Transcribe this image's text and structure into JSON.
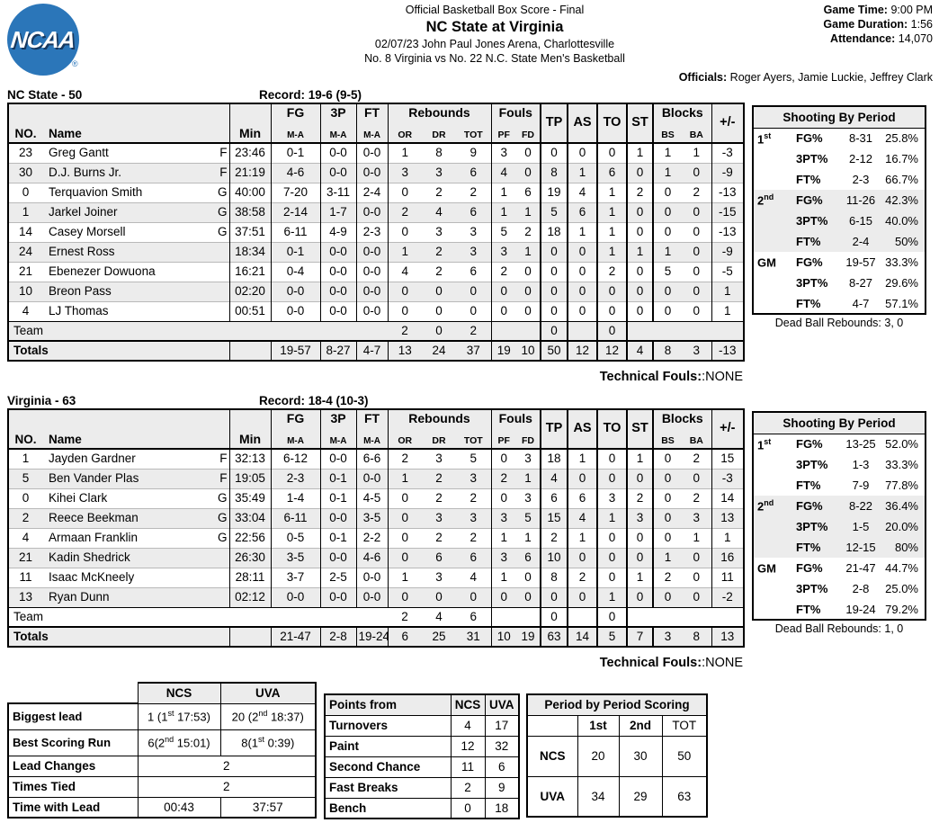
{
  "colors": {
    "logo_blue": "#2B76B9",
    "row_shade": "#ECECEC"
  },
  "header": {
    "logo_text": "NCAA",
    "logo_registered": "®",
    "report_title": "Official Basketball Box Score - Final",
    "game_title": "NC State at Virginia",
    "venue_line": "02/07/23 John Paul Jones Arena, Charlottesville",
    "matchup_line": "No. 8 Virginia vs No. 22 N.C. State Men's Basketball",
    "game_time_label": "Game Time:",
    "game_time": "9:00 PM",
    "game_duration_label": "Game Duration:",
    "game_duration": "1:56",
    "attendance_label": "Attendance:",
    "attendance": "14,070",
    "officials_label": "Officials:",
    "officials": "Roger Ayers, Jamie Luckie, Jeffrey Clark"
  },
  "th": {
    "no": "NO.",
    "name": "Name",
    "min": "Min",
    "fg": "FG",
    "p3": "3P",
    "ft": "FT",
    "ma": "M-A",
    "rebounds": "Rebounds",
    "or": "OR",
    "dr": "DR",
    "tot": "TOT",
    "fouls": "Fouls",
    "pf": "PF",
    "fd": "FD",
    "tp": "TP",
    "as": "AS",
    "to": "TO",
    "st": "ST",
    "blocks": "Blocks",
    "bs": "BS",
    "ba": "BA",
    "pm": "+/-",
    "team_row_label": "Team",
    "totals_label": "Totals"
  },
  "ncstate": {
    "team_label": "NC State - 50",
    "record": "Record: 19-6 (9-5)",
    "players": [
      {
        "no": "23",
        "name": "Greg Gantt",
        "pos": "F",
        "min": "23:46",
        "fg": "0-1",
        "p3": "0-0",
        "ft": "0-0",
        "or": "1",
        "dr": "8",
        "tot": "9",
        "pf": "3",
        "fd": "0",
        "tp": "0",
        "as": "0",
        "to": "0",
        "st": "1",
        "bs": "1",
        "ba": "1",
        "pm": "-3"
      },
      {
        "no": "30",
        "name": "D.J. Burns Jr.",
        "pos": "F",
        "min": "21:19",
        "fg": "4-6",
        "p3": "0-0",
        "ft": "0-0",
        "or": "3",
        "dr": "3",
        "tot": "6",
        "pf": "4",
        "fd": "0",
        "tp": "8",
        "as": "1",
        "to": "6",
        "st": "0",
        "bs": "1",
        "ba": "0",
        "pm": "-9"
      },
      {
        "no": "0",
        "name": "Terquavion Smith",
        "pos": "G",
        "min": "40:00",
        "fg": "7-20",
        "p3": "3-11",
        "ft": "2-4",
        "or": "0",
        "dr": "2",
        "tot": "2",
        "pf": "1",
        "fd": "6",
        "tp": "19",
        "as": "4",
        "to": "1",
        "st": "2",
        "bs": "0",
        "ba": "2",
        "pm": "-13"
      },
      {
        "no": "1",
        "name": "Jarkel Joiner",
        "pos": "G",
        "min": "38:58",
        "fg": "2-14",
        "p3": "1-7",
        "ft": "0-0",
        "or": "2",
        "dr": "4",
        "tot": "6",
        "pf": "1",
        "fd": "1",
        "tp": "5",
        "as": "6",
        "to": "1",
        "st": "0",
        "bs": "0",
        "ba": "0",
        "pm": "-15"
      },
      {
        "no": "14",
        "name": "Casey Morsell",
        "pos": "G",
        "min": "37:51",
        "fg": "6-11",
        "p3": "4-9",
        "ft": "2-3",
        "or": "0",
        "dr": "3",
        "tot": "3",
        "pf": "5",
        "fd": "2",
        "tp": "18",
        "as": "1",
        "to": "1",
        "st": "0",
        "bs": "0",
        "ba": "0",
        "pm": "-13"
      },
      {
        "no": "24",
        "name": "Ernest Ross",
        "pos": "",
        "min": "18:34",
        "fg": "0-1",
        "p3": "0-0",
        "ft": "0-0",
        "or": "1",
        "dr": "2",
        "tot": "3",
        "pf": "3",
        "fd": "1",
        "tp": "0",
        "as": "0",
        "to": "1",
        "st": "1",
        "bs": "1",
        "ba": "0",
        "pm": "-9"
      },
      {
        "no": "21",
        "name": "Ebenezer Dowuona",
        "pos": "",
        "min": "16:21",
        "fg": "0-4",
        "p3": "0-0",
        "ft": "0-0",
        "or": "4",
        "dr": "2",
        "tot": "6",
        "pf": "2",
        "fd": "0",
        "tp": "0",
        "as": "0",
        "to": "2",
        "st": "0",
        "bs": "5",
        "ba": "0",
        "pm": "-5"
      },
      {
        "no": "10",
        "name": "Breon Pass",
        "pos": "",
        "min": "02:20",
        "fg": "0-0",
        "p3": "0-0",
        "ft": "0-0",
        "or": "0",
        "dr": "0",
        "tot": "0",
        "pf": "0",
        "fd": "0",
        "tp": "0",
        "as": "0",
        "to": "0",
        "st": "0",
        "bs": "0",
        "ba": "0",
        "pm": "1"
      },
      {
        "no": "4",
        "name": "LJ Thomas",
        "pos": "",
        "min": "00:51",
        "fg": "0-0",
        "p3": "0-0",
        "ft": "0-0",
        "or": "0",
        "dr": "0",
        "tot": "0",
        "pf": "0",
        "fd": "0",
        "tp": "0",
        "as": "0",
        "to": "0",
        "st": "0",
        "bs": "0",
        "ba": "0",
        "pm": "1"
      }
    ],
    "team_row": {
      "or": "2",
      "dr": "0",
      "tot": "2",
      "tp": "0",
      "to": "0"
    },
    "totals": {
      "fg": "19-57",
      "p3": "8-27",
      "ft": "4-7",
      "or": "13",
      "dr": "24",
      "tot": "37",
      "pf": "19",
      "fd": "10",
      "tp": "50",
      "as": "12",
      "to": "12",
      "st": "4",
      "bs": "8",
      "ba": "3",
      "pm": "-13"
    },
    "technical_fouls_label": "Technical Fouls:",
    "technical_fouls_value": ":NONE",
    "shooting": {
      "title": "Shooting By Period",
      "rows": [
        {
          "period": "1",
          "sup": "st",
          "stat": "FG%",
          "ma": "8-31",
          "pct": "25.8%",
          "shade": false
        },
        {
          "period": "",
          "sup": "",
          "stat": "3PT%",
          "ma": "2-12",
          "pct": "16.7%",
          "shade": false
        },
        {
          "period": "",
          "sup": "",
          "stat": "FT%",
          "ma": "2-3",
          "pct": "66.7%",
          "shade": false
        },
        {
          "period": "2",
          "sup": "nd",
          "stat": "FG%",
          "ma": "11-26",
          "pct": "42.3%",
          "shade": true
        },
        {
          "period": "",
          "sup": "",
          "stat": "3PT%",
          "ma": "6-15",
          "pct": "40.0%",
          "shade": true
        },
        {
          "period": "",
          "sup": "",
          "stat": "FT%",
          "ma": "2-4",
          "pct": "50%",
          "shade": true
        },
        {
          "period": "GM",
          "sup": "",
          "stat": "FG%",
          "ma": "19-57",
          "pct": "33.3%",
          "shade": false
        },
        {
          "period": "",
          "sup": "",
          "stat": "3PT%",
          "ma": "8-27",
          "pct": "29.6%",
          "shade": false
        },
        {
          "period": "",
          "sup": "",
          "stat": "FT%",
          "ma": "4-7",
          "pct": "57.1%",
          "shade": false
        }
      ],
      "dead_ball": "Dead Ball Rebounds: 3, 0"
    }
  },
  "virginia": {
    "team_label": "Virginia - 63",
    "record": "Record: 18-4 (10-3)",
    "players": [
      {
        "no": "1",
        "name": "Jayden Gardner",
        "pos": "F",
        "min": "32:13",
        "fg": "6-12",
        "p3": "0-0",
        "ft": "6-6",
        "or": "2",
        "dr": "3",
        "tot": "5",
        "pf": "0",
        "fd": "3",
        "tp": "18",
        "as": "1",
        "to": "0",
        "st": "1",
        "bs": "0",
        "ba": "2",
        "pm": "15"
      },
      {
        "no": "5",
        "name": "Ben Vander Plas",
        "pos": "F",
        "min": "19:05",
        "fg": "2-3",
        "p3": "0-1",
        "ft": "0-0",
        "or": "1",
        "dr": "2",
        "tot": "3",
        "pf": "2",
        "fd": "1",
        "tp": "4",
        "as": "0",
        "to": "0",
        "st": "0",
        "bs": "0",
        "ba": "0",
        "pm": "-3"
      },
      {
        "no": "0",
        "name": "Kihei Clark",
        "pos": "G",
        "min": "35:49",
        "fg": "1-4",
        "p3": "0-1",
        "ft": "4-5",
        "or": "0",
        "dr": "2",
        "tot": "2",
        "pf": "0",
        "fd": "3",
        "tp": "6",
        "as": "6",
        "to": "3",
        "st": "2",
        "bs": "0",
        "ba": "2",
        "pm": "14"
      },
      {
        "no": "2",
        "name": "Reece Beekman",
        "pos": "G",
        "min": "33:04",
        "fg": "6-11",
        "p3": "0-0",
        "ft": "3-5",
        "or": "0",
        "dr": "3",
        "tot": "3",
        "pf": "3",
        "fd": "5",
        "tp": "15",
        "as": "4",
        "to": "1",
        "st": "3",
        "bs": "0",
        "ba": "3",
        "pm": "13"
      },
      {
        "no": "4",
        "name": "Armaan Franklin",
        "pos": "G",
        "min": "22:56",
        "fg": "0-5",
        "p3": "0-1",
        "ft": "2-2",
        "or": "0",
        "dr": "2",
        "tot": "2",
        "pf": "1",
        "fd": "1",
        "tp": "2",
        "as": "1",
        "to": "0",
        "st": "0",
        "bs": "0",
        "ba": "1",
        "pm": "1"
      },
      {
        "no": "21",
        "name": "Kadin Shedrick",
        "pos": "",
        "min": "26:30",
        "fg": "3-5",
        "p3": "0-0",
        "ft": "4-6",
        "or": "0",
        "dr": "6",
        "tot": "6",
        "pf": "3",
        "fd": "6",
        "tp": "10",
        "as": "0",
        "to": "0",
        "st": "0",
        "bs": "1",
        "ba": "0",
        "pm": "16"
      },
      {
        "no": "11",
        "name": "Isaac McKneely",
        "pos": "",
        "min": "28:11",
        "fg": "3-7",
        "p3": "2-5",
        "ft": "0-0",
        "or": "1",
        "dr": "3",
        "tot": "4",
        "pf": "1",
        "fd": "0",
        "tp": "8",
        "as": "2",
        "to": "0",
        "st": "1",
        "bs": "2",
        "ba": "0",
        "pm": "11"
      },
      {
        "no": "13",
        "name": "Ryan Dunn",
        "pos": "",
        "min": "02:12",
        "fg": "0-0",
        "p3": "0-0",
        "ft": "0-0",
        "or": "0",
        "dr": "0",
        "tot": "0",
        "pf": "0",
        "fd": "0",
        "tp": "0",
        "as": "0",
        "to": "1",
        "st": "0",
        "bs": "0",
        "ba": "0",
        "pm": "-2"
      }
    ],
    "team_row": {
      "or": "2",
      "dr": "4",
      "tot": "6",
      "tp": "0",
      "to": "0"
    },
    "totals": {
      "fg": "21-47",
      "p3": "2-8",
      "ft": "19-24",
      "or": "6",
      "dr": "25",
      "tot": "31",
      "pf": "10",
      "fd": "19",
      "tp": "63",
      "as": "14",
      "to": "5",
      "st": "7",
      "bs": "3",
      "ba": "8",
      "pm": "13"
    },
    "technical_fouls_label": "Technical Fouls:",
    "technical_fouls_value": ":NONE",
    "shooting": {
      "title": "Shooting By Period",
      "rows": [
        {
          "period": "1",
          "sup": "st",
          "stat": "FG%",
          "ma": "13-25",
          "pct": "52.0%",
          "shade": false
        },
        {
          "period": "",
          "sup": "",
          "stat": "3PT%",
          "ma": "1-3",
          "pct": "33.3%",
          "shade": false
        },
        {
          "period": "",
          "sup": "",
          "stat": "FT%",
          "ma": "7-9",
          "pct": "77.8%",
          "shade": false
        },
        {
          "period": "2",
          "sup": "nd",
          "stat": "FG%",
          "ma": "8-22",
          "pct": "36.4%",
          "shade": true
        },
        {
          "period": "",
          "sup": "",
          "stat": "3PT%",
          "ma": "1-5",
          "pct": "20.0%",
          "shade": true
        },
        {
          "period": "",
          "sup": "",
          "stat": "FT%",
          "ma": "12-15",
          "pct": "80%",
          "shade": true
        },
        {
          "period": "GM",
          "sup": "",
          "stat": "FG%",
          "ma": "21-47",
          "pct": "44.7%",
          "shade": false
        },
        {
          "period": "",
          "sup": "",
          "stat": "3PT%",
          "ma": "2-8",
          "pct": "25.0%",
          "shade": false
        },
        {
          "period": "",
          "sup": "",
          "stat": "FT%",
          "ma": "19-24",
          "pct": "79.2%",
          "shade": false
        }
      ],
      "dead_ball": "Dead Ball Rebounds: 1, 0"
    }
  },
  "lead_table": {
    "col_ncs": "NCS",
    "col_uva": "UVA",
    "biggest_lead": {
      "label": "Biggest lead",
      "ncs": {
        "pre": "1 (1",
        "sup": "st",
        "post": " 17:53)"
      },
      "uva": {
        "pre": "20 (2",
        "sup": "nd",
        "post": " 18:37)"
      }
    },
    "best_run": {
      "label": "Best Scoring Run",
      "ncs": {
        "pre": "6(2",
        "sup": "nd",
        "post": " 15:01)"
      },
      "uva": {
        "pre": "8(1",
        "sup": "st",
        "post": " 0:39)"
      }
    },
    "lead_changes": {
      "label": "Lead Changes",
      "value": "2"
    },
    "times_tied": {
      "label": "Times Tied",
      "value": "2"
    },
    "time_with_lead": {
      "label": "Time with Lead",
      "ncs": "00:43",
      "uva": "37:57"
    }
  },
  "points_from": {
    "title": "Points from",
    "col_ncs": "NCS",
    "col_uva": "UVA",
    "rows": [
      {
        "label": "Turnovers",
        "ncs": "4",
        "uva": "17"
      },
      {
        "label": "Paint",
        "ncs": "12",
        "uva": "32"
      },
      {
        "label": "Second Chance",
        "ncs": "11",
        "uva": "6"
      },
      {
        "label": "Fast Breaks",
        "ncs": "2",
        "uva": "9"
      },
      {
        "label": "Bench",
        "ncs": "0",
        "uva": "18"
      }
    ]
  },
  "period_scoring": {
    "title": "Period by Period Scoring",
    "col_1st": "1st",
    "col_2nd": "2nd",
    "col_tot": "TOT",
    "rows": [
      {
        "team": "NCS",
        "p1": "20",
        "p2": "30",
        "tot": "50"
      },
      {
        "team": "UVA",
        "p1": "34",
        "p2": "29",
        "tot": "63"
      }
    ]
  }
}
